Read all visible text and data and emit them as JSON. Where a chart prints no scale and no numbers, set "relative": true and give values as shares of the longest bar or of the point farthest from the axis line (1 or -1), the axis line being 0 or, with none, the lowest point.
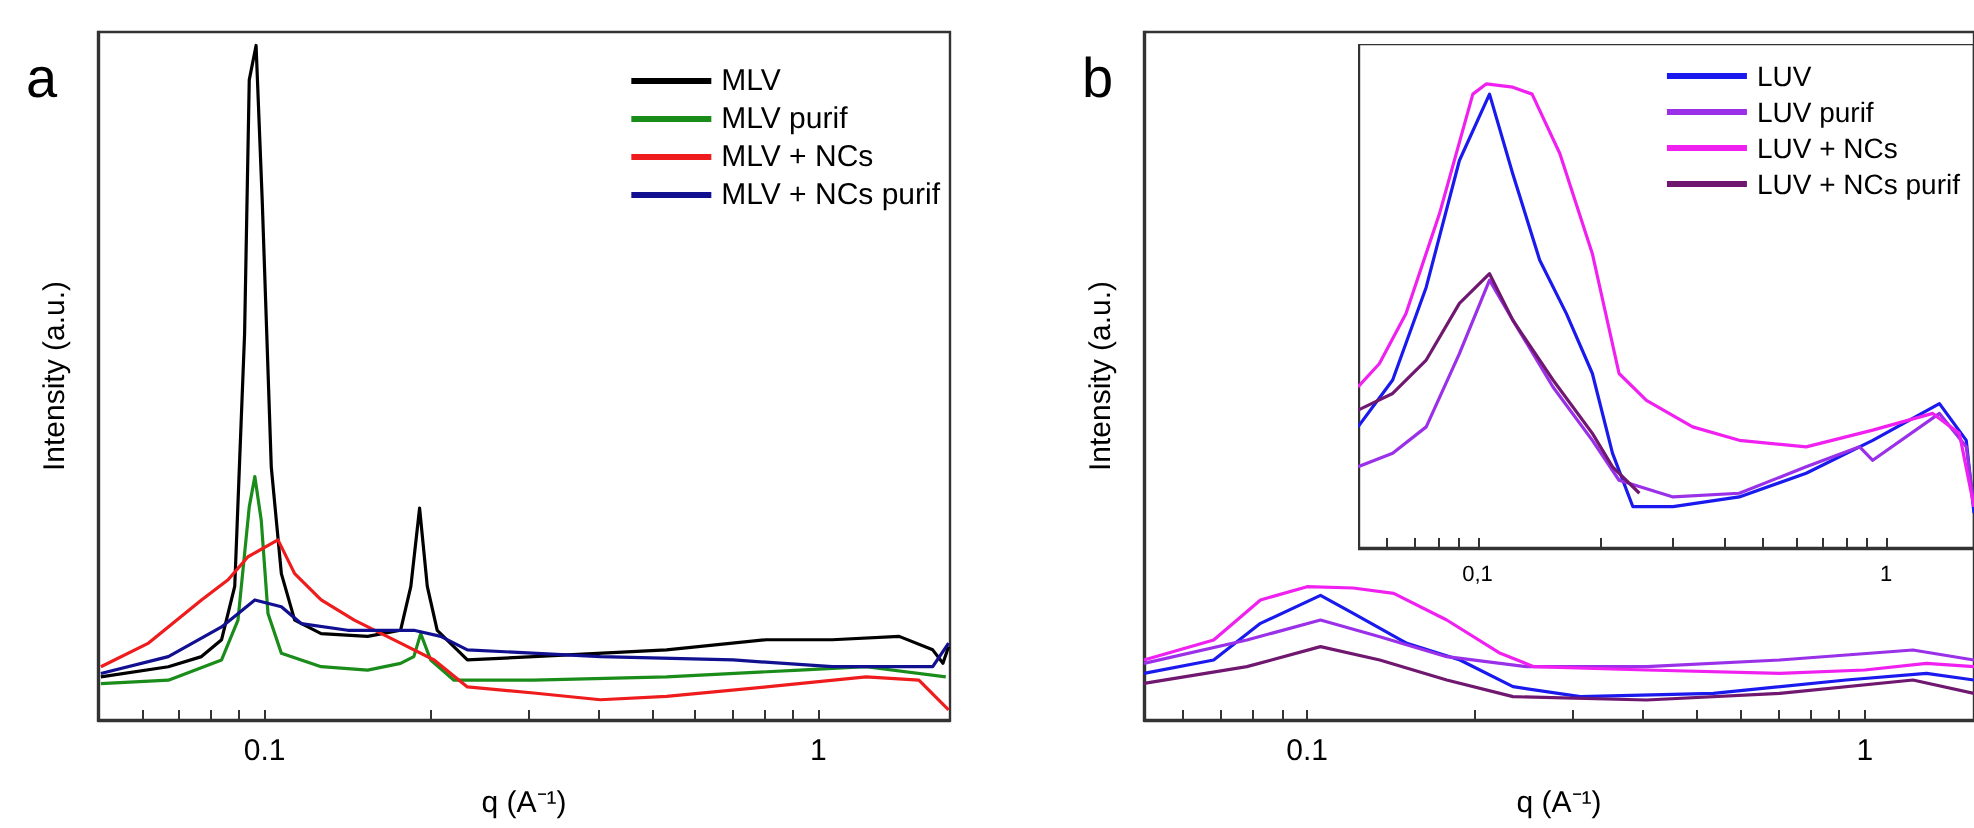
{
  "chart_data": [
    {
      "type": "line",
      "title": "a",
      "xlabel": "q (A⁻¹)",
      "ylabel": "Intensity (a.u.)",
      "relative": true,
      "log": "x",
      "legend": "top right",
      "grid": false,
      "xlim": [
        0.05,
        1.73
      ],
      "xticks": [
        {
          "value": 0.06,
          "label": null
        },
        {
          "value": 0.07,
          "label": null
        },
        {
          "value": 0.08,
          "label": null
        },
        {
          "value": 0.09,
          "label": null
        },
        {
          "value": 0.1,
          "label": "0.1"
        },
        {
          "value": 0.2,
          "label": null
        },
        {
          "value": 0.3,
          "label": null
        },
        {
          "value": 0.4,
          "label": null
        },
        {
          "value": 0.5,
          "label": null
        },
        {
          "value": 0.6,
          "label": null
        },
        {
          "value": 0.7,
          "label": null
        },
        {
          "value": 0.8,
          "label": null
        },
        {
          "value": 0.9,
          "label": null
        },
        {
          "value": 1,
          "label": "1"
        }
      ],
      "series": [
        {
          "name": "MLV",
          "color": "#000000",
          "x": [
            0.0506,
            0.067,
            0.0769,
            0.0836,
            0.0883,
            0.092,
            0.0938,
            0.0965,
            0.099,
            0.1028,
            0.1072,
            0.1133,
            0.1265,
            0.1535,
            0.176,
            0.1837,
            0.1905,
            0.1967,
            0.205,
            0.2324,
            0.306,
            0.532,
            0.806,
            1.06,
            1.4,
            1.61,
            1.68,
            1.72
          ],
          "values": [
            0.064,
            0.079,
            0.094,
            0.119,
            0.198,
            0.573,
            0.949,
            1,
            0.77,
            0.375,
            0.217,
            0.148,
            0.128,
            0.124,
            0.133,
            0.198,
            0.314,
            0.198,
            0.133,
            0.089,
            0.094,
            0.104,
            0.119,
            0.119,
            0.124,
            0.104,
            0.084,
            0.109
          ]
        },
        {
          "name": "MLV purif",
          "color": "#1a8c1a",
          "x": [
            0.0506,
            0.067,
            0.0836,
            0.0895,
            0.0938,
            0.096,
            0.0986,
            0.1014,
            0.1072,
            0.1265,
            0.1535,
            0.176,
            0.186,
            0.1914,
            0.1995,
            0.2198,
            0.306,
            0.532,
            0.925,
            1.22,
            1.7
          ],
          "values": [
            0.054,
            0.059,
            0.089,
            0.148,
            0.316,
            0.361,
            0.296,
            0.158,
            0.099,
            0.079,
            0.074,
            0.084,
            0.094,
            0.128,
            0.089,
            0.059,
            0.059,
            0.064,
            0.074,
            0.079,
            0.064
          ]
        },
        {
          "name": "MLV + NCs",
          "color": "#ee1c1c",
          "x": [
            0.0506,
            0.0617,
            0.0769,
            0.0859,
            0.0933,
            0.1057,
            0.1133,
            0.1265,
            0.1452,
            0.176,
            0.2024,
            0.2324,
            0.306,
            0.404,
            0.532,
            0.806,
            1.22,
            1.52,
            1.72
          ],
          "values": [
            0.079,
            0.114,
            0.178,
            0.208,
            0.242,
            0.267,
            0.217,
            0.178,
            0.148,
            0.114,
            0.089,
            0.049,
            0.04,
            0.03,
            0.035,
            0.049,
            0.064,
            0.059,
            0.015
          ]
        },
        {
          "name": "MLV + NCs purif",
          "color": "#101090",
          "x": [
            0.0506,
            0.067,
            0.0836,
            0.096,
            0.1072,
            0.1164,
            0.1413,
            0.186,
            0.208,
            0.2324,
            0.404,
            0.702,
            1.06,
            1.61,
            1.72
          ],
          "values": [
            0.069,
            0.094,
            0.138,
            0.178,
            0.168,
            0.143,
            0.133,
            0.133,
            0.124,
            0.104,
            0.094,
            0.089,
            0.079,
            0.079,
            0.114
          ]
        }
      ]
    },
    {
      "type": "line",
      "title": "b",
      "xlabel": "q (A⁻¹)",
      "ylabel": "Intensity (a.u.)",
      "relative": true,
      "log": "x",
      "grid": false,
      "xlim": [
        0.051,
        1.57
      ],
      "xticks": [
        {
          "value": 0.06,
          "label": null
        },
        {
          "value": 0.07,
          "label": null
        },
        {
          "value": 0.08,
          "label": null
        },
        {
          "value": 0.09,
          "label": null
        },
        {
          "value": 0.1,
          "label": "0.1"
        },
        {
          "value": 0.2,
          "label": null
        },
        {
          "value": 0.3,
          "label": null
        },
        {
          "value": 0.4,
          "label": null
        },
        {
          "value": 0.5,
          "label": null
        },
        {
          "value": 0.6,
          "label": null
        },
        {
          "value": 0.7,
          "label": null
        },
        {
          "value": 0.8,
          "label": null
        },
        {
          "value": 0.9,
          "label": null
        },
        {
          "value": 1,
          "label": "1"
        }
      ],
      "series": [
        {
          "color": "#1a1aee",
          "x": [
            0.051,
            0.068,
            0.0825,
            0.1057,
            0.121,
            0.151,
            0.188,
            0.234,
            0.309,
            0.535,
            0.926,
            1.29,
            1.57
          ],
          "values": [
            0.35,
            0.45,
            0.725,
            0.935,
            0.8,
            0.575,
            0.45,
            0.25,
            0.175,
            0.2,
            0.3,
            0.35,
            0.3
          ]
        },
        {
          "color": "#9a30e8",
          "x": [
            0.051,
            0.078,
            0.1057,
            0.135,
            0.178,
            0.248,
            0.406,
            0.704,
            1.22,
            1.57
          ],
          "values": [
            0.425,
            0.6,
            0.75,
            0.625,
            0.475,
            0.4,
            0.4,
            0.45,
            0.525,
            0.45
          ]
        },
        {
          "color": "#f020f0",
          "x": [
            0.051,
            0.068,
            0.0825,
            0.1,
            0.121,
            0.143,
            0.178,
            0.222,
            0.255,
            0.406,
            0.704,
            1,
            1.29,
            1.57
          ],
          "values": [
            0.45,
            0.6,
            0.9,
            1,
            0.99,
            0.95,
            0.75,
            0.5,
            0.4,
            0.375,
            0.35,
            0.375,
            0.425,
            0.4
          ]
        },
        {
          "color": "#701870",
          "x": [
            0.051,
            0.078,
            0.1057,
            0.135,
            0.178,
            0.234,
            0.406,
            0.704,
            1.22,
            1.57
          ],
          "values": [
            0.275,
            0.4,
            0.55,
            0.45,
            0.3,
            0.175,
            0.15,
            0.2,
            0.3,
            0.2
          ]
        }
      ]
    },
    {
      "type": "line",
      "relative": true,
      "log": "x",
      "legend": "top right",
      "grid": false,
      "xlim": [
        0.051,
        1.64
      ],
      "xticks": [
        {
          "value": 0.06,
          "label": null
        },
        {
          "value": 0.07,
          "label": null
        },
        {
          "value": 0.08,
          "label": null
        },
        {
          "value": 0.09,
          "label": null
        },
        {
          "value": 0.1,
          "label": "0,1"
        },
        {
          "value": 0.2,
          "label": null
        },
        {
          "value": 0.3,
          "label": null
        },
        {
          "value": 0.4,
          "label": null
        },
        {
          "value": 0.5,
          "label": null
        },
        {
          "value": 0.6,
          "label": null
        },
        {
          "value": 0.7,
          "label": null
        },
        {
          "value": 0.8,
          "label": null
        },
        {
          "value": 0.9,
          "label": null
        },
        {
          "value": 1,
          "label": "1"
        }
      ],
      "series": [
        {
          "name": "LUV",
          "color": "#1a1aee",
          "x": [
            0.051,
            0.062,
            0.0749,
            0.0903,
            0.107,
            0.122,
            0.142,
            0.165,
            0.191,
            0.214,
            0.24,
            0.301,
            0.437,
            0.637,
            0.927,
            1.35,
            1.57,
            1.64
          ],
          "values": [
            0.261,
            0.362,
            0.562,
            0.835,
            0.978,
            0.806,
            0.62,
            0.505,
            0.376,
            0.204,
            0.089,
            0.089,
            0.11,
            0.161,
            0.232,
            0.311,
            0.232,
            0.075
          ]
        },
        {
          "name": "LUV purif",
          "color": "#9a30e8",
          "x": [
            0.051,
            0.062,
            0.0749,
            0.0903,
            0.107,
            0.122,
            0.153,
            0.191,
            0.222,
            0.301,
            0.437,
            0.637,
            0.861,
            0.927,
            1.35,
            1.57,
            1.64
          ],
          "values": [
            0.175,
            0.204,
            0.261,
            0.419,
            0.577,
            0.491,
            0.347,
            0.232,
            0.146,
            0.11,
            0.118,
            0.175,
            0.218,
            0.189,
            0.29,
            0.218,
            0.089
          ]
        },
        {
          "name": "LUV + NCs",
          "color": "#f020f0",
          "x": [
            0.051,
            0.0575,
            0.0668,
            0.0807,
            0.0974,
            0.105,
            0.122,
            0.136,
            0.159,
            0.191,
            0.222,
            0.259,
            0.336,
            0.437,
            0.637,
            0.927,
            1.3,
            1.51,
            1.64
          ],
          "values": [
            0.347,
            0.397,
            0.505,
            0.72,
            0.978,
            1,
            0.993,
            0.978,
            0.85,
            0.634,
            0.376,
            0.318,
            0.261,
            0.232,
            0.218,
            0.254,
            0.29,
            0.247,
            0.089
          ]
        },
        {
          "name": "LUV + NCs purif",
          "color": "#701870",
          "x": [
            0.051,
            0.062,
            0.0749,
            0.0903,
            0.107,
            0.122,
            0.153,
            0.191,
            0.214,
            0.249
          ],
          "values": [
            0.297,
            0.333,
            0.405,
            0.527,
            0.591,
            0.491,
            0.362,
            0.247,
            0.175,
            0.118
          ]
        }
      ]
    }
  ]
}
